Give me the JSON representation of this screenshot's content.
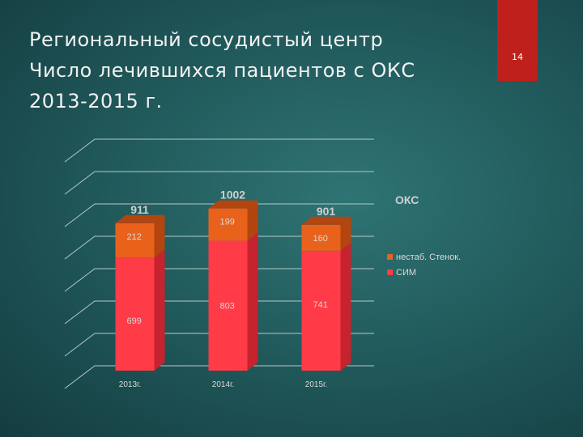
{
  "slide": {
    "title_lines": [
      "Региональный сосудистый центр",
      "Число лечившихся пациентов с ОКС",
      "2013-2015 г."
    ],
    "page_number": "14"
  },
  "chart_data": {
    "type": "bar3d_stacked",
    "legend_title": "ОКС",
    "categories": [
      "2013г.",
      "2014г.",
      "2015г."
    ],
    "series": [
      {
        "name": "СИМ",
        "color": "#ff3b47",
        "side_color": "#c5232d",
        "values": [
          699,
          803,
          741
        ]
      },
      {
        "name": "нестаб. Стенок.",
        "color": "#e8621c",
        "side_color": "#b24510",
        "values": [
          212,
          199,
          160
        ]
      }
    ],
    "totals": [
      911,
      1002,
      901
    ],
    "ylim": [
      0,
      1400
    ],
    "yticks": [
      0,
      200,
      400,
      600,
      800,
      1000,
      1200,
      1400
    ],
    "grid": true,
    "legend": "right"
  }
}
